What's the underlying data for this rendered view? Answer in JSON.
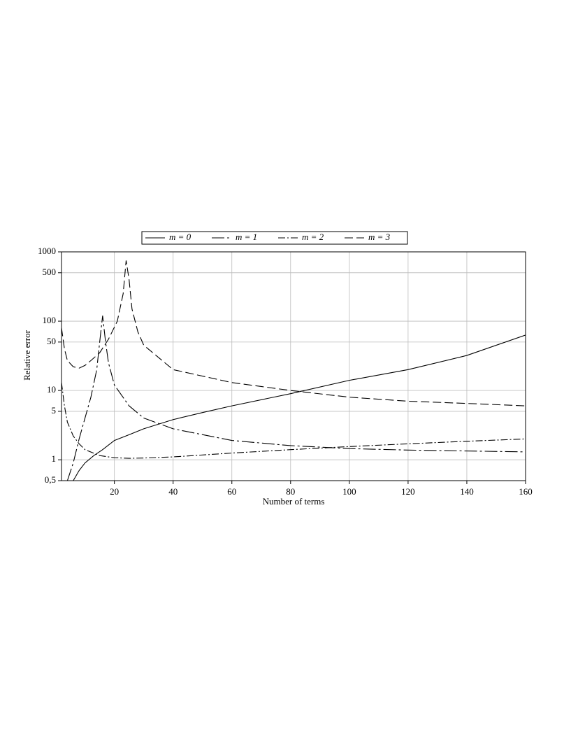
{
  "chart_data": {
    "type": "line",
    "x_label": "Number of terms",
    "y_label": "Relative error",
    "xlim": [
      2,
      160
    ],
    "xticks": [
      20,
      40,
      60,
      80,
      100,
      120,
      140,
      160
    ],
    "ylim": [
      0.5,
      1000
    ],
    "yticks": [
      {
        "value": 0.5,
        "label": "0,5"
      },
      1,
      5,
      10,
      50,
      100,
      500,
      1000
    ],
    "log_y": true,
    "grid": true,
    "legend": "top",
    "series": [
      {
        "name": "m = 0",
        "color": "#000000",
        "dash": "none",
        "x": [
          6,
          8,
          10,
          13,
          16,
          20,
          25,
          30,
          40,
          50,
          60,
          80,
          100,
          120,
          140,
          160
        ],
        "values": [
          0.5,
          0.7,
          0.9,
          1.15,
          1.4,
          1.9,
          2.3,
          2.8,
          3.8,
          4.8,
          6,
          9,
          14,
          20,
          32,
          63
        ]
      },
      {
        "name": "m = 1",
        "color": "#000000",
        "dash": "18 4 3 4",
        "x": [
          4,
          6,
          8,
          10,
          12,
          14,
          15,
          16,
          17,
          18,
          20,
          25,
          30,
          40,
          60,
          80,
          100,
          120,
          160
        ],
        "values": [
          0.5,
          0.9,
          2,
          4,
          8,
          20,
          50,
          120,
          50,
          25,
          12,
          6,
          4,
          2.8,
          1.9,
          1.6,
          1.45,
          1.38,
          1.3
        ]
      },
      {
        "name": "m = 2",
        "color": "#000000",
        "dash": "10 3 2 3",
        "x": [
          2,
          3,
          4,
          6,
          8,
          10,
          15,
          20,
          25,
          30,
          40,
          60,
          80,
          100,
          120,
          140,
          160
        ],
        "values": [
          13,
          6,
          3.5,
          2.2,
          1.7,
          1.4,
          1.15,
          1.07,
          1.05,
          1.06,
          1.1,
          1.25,
          1.4,
          1.55,
          1.7,
          1.85,
          2.0
        ]
      },
      {
        "name": "m = 3",
        "color": "#000000",
        "dash": "12 5",
        "x": [
          2,
          3,
          4,
          6,
          8,
          10,
          12,
          15,
          18,
          21,
          23,
          24,
          25,
          26,
          28,
          30,
          40,
          60,
          80,
          100,
          120,
          140,
          160
        ],
        "values": [
          80,
          40,
          27,
          22,
          21,
          23,
          27,
          35,
          55,
          100,
          250,
          750,
          400,
          150,
          70,
          45,
          20,
          13,
          10,
          8,
          7,
          6.5,
          6
        ]
      }
    ]
  }
}
